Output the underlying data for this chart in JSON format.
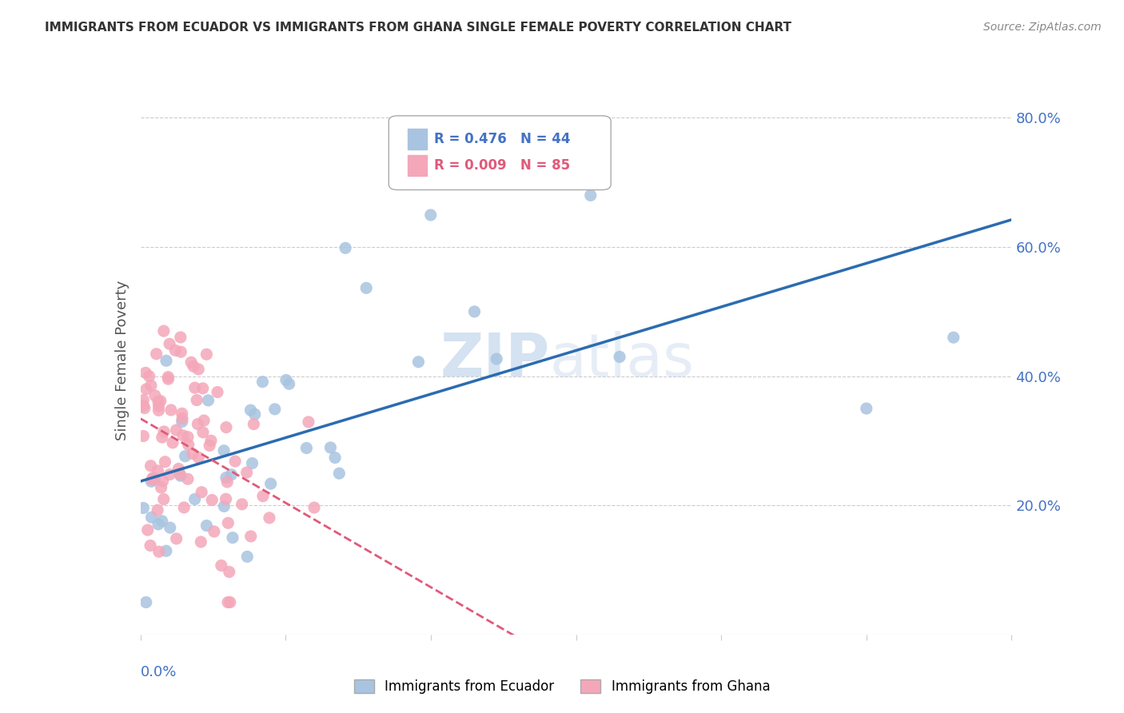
{
  "title": "IMMIGRANTS FROM ECUADOR VS IMMIGRANTS FROM GHANA SINGLE FEMALE POVERTY CORRELATION CHART",
  "source": "Source: ZipAtlas.com",
  "ylabel": "Single Female Poverty",
  "y_ticks": [
    0.0,
    0.2,
    0.4,
    0.6,
    0.8
  ],
  "y_tick_labels": [
    "",
    "20.0%",
    "40.0%",
    "60.0%",
    "80.0%"
  ],
  "x_range": [
    0.0,
    0.3
  ],
  "y_range": [
    0.0,
    0.85
  ],
  "ecuador_R": 0.476,
  "ecuador_N": 44,
  "ghana_R": 0.009,
  "ghana_N": 85,
  "ecuador_color": "#a8c4e0",
  "ecuador_line_color": "#2b6cb0",
  "ghana_color": "#f4a7b9",
  "ghana_line_color": "#e05a7a",
  "background_color": "#ffffff",
  "grid_color": "#cccccc",
  "watermark_zip": "ZIP",
  "watermark_atlas": "atlas",
  "legend_label_ecuador": "Immigrants from Ecuador",
  "legend_label_ghana": "Immigrants from Ghana"
}
